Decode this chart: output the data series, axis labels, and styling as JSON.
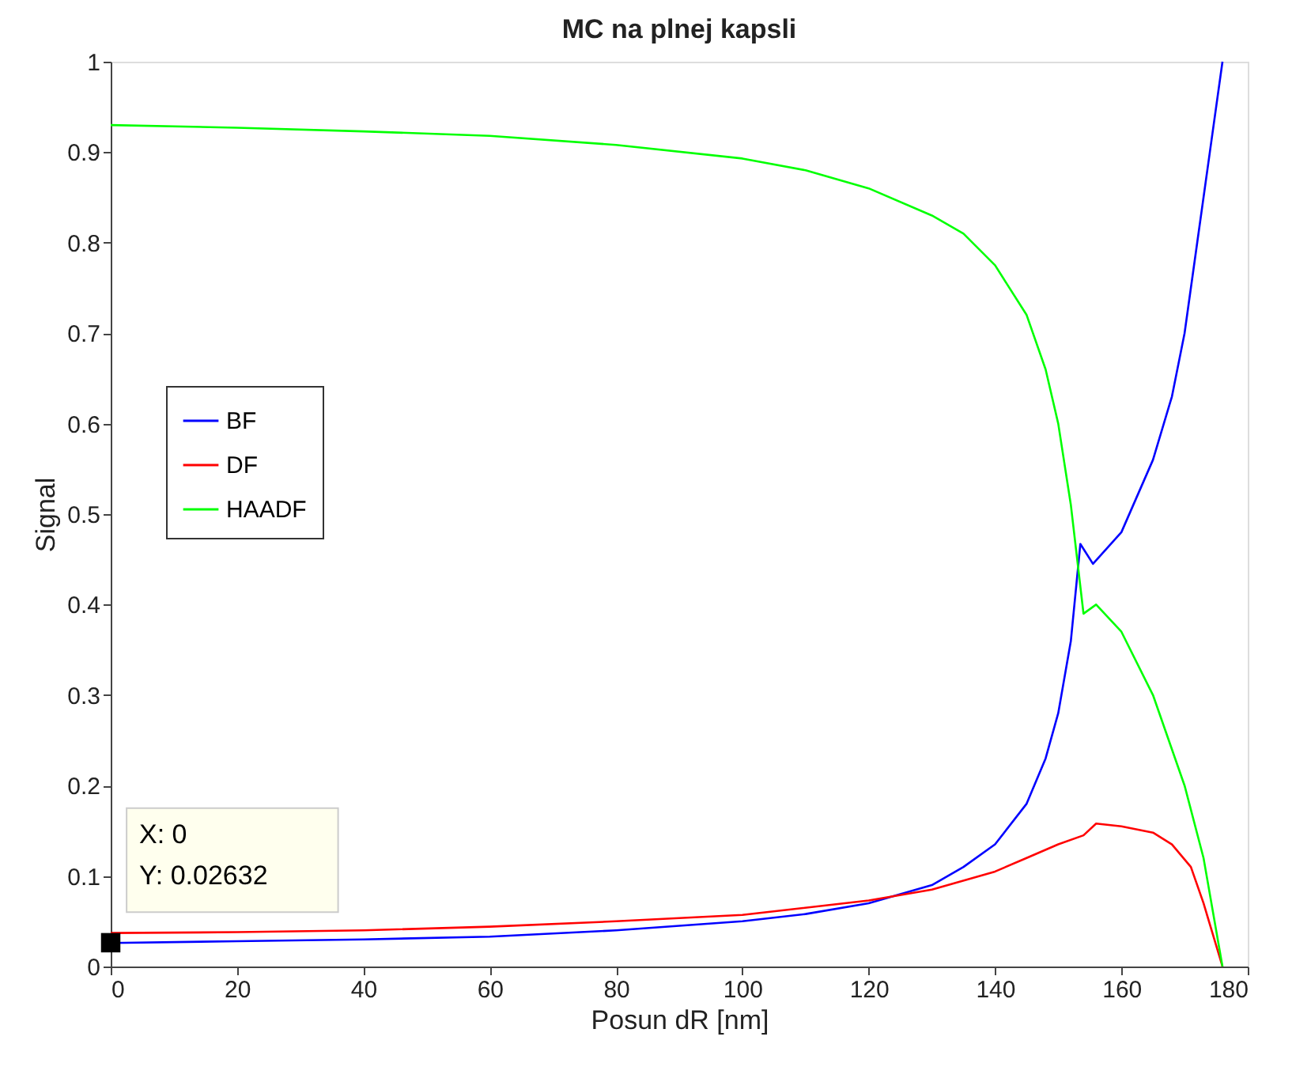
{
  "chart_data": {
    "type": "line",
    "title": "MC na plnej kapsli",
    "xlabel": "Posun dR [nm]",
    "ylabel": "Signal",
    "xlim": [
      0,
      180
    ],
    "xticks": [
      0,
      20,
      40,
      60,
      80,
      100,
      120,
      140,
      160,
      180
    ],
    "ylim": [
      0,
      1
    ],
    "yticks": [
      0,
      0.1,
      0.2,
      0.3,
      0.4,
      0.5,
      0.6,
      0.7,
      0.8,
      0.9,
      1
    ],
    "grid": false,
    "legend": "left",
    "marker": "none",
    "line_style": "solid",
    "series": [
      {
        "name": "BF",
        "color": "#0000ff",
        "x": [
          0,
          20,
          40,
          60,
          80,
          100,
          110,
          120,
          130,
          135,
          140,
          145,
          148,
          150,
          152,
          153.5,
          155.5,
          160,
          165,
          168,
          170,
          172,
          174,
          176
        ],
        "values": [
          0.026,
          0.028,
          0.03,
          0.033,
          0.04,
          0.05,
          0.058,
          0.07,
          0.09,
          0.11,
          0.135,
          0.18,
          0.23,
          0.28,
          0.36,
          0.467,
          0.445,
          0.48,
          0.56,
          0.63,
          0.7,
          0.8,
          0.9,
          1.0
        ]
      },
      {
        "name": "DF",
        "color": "#ff0000",
        "x": [
          0,
          20,
          40,
          60,
          80,
          100,
          120,
          130,
          140,
          145,
          150,
          154,
          156,
          160,
          165,
          168,
          171,
          173,
          176
        ],
        "values": [
          0.037,
          0.038,
          0.04,
          0.044,
          0.05,
          0.057,
          0.073,
          0.085,
          0.105,
          0.12,
          0.135,
          0.145,
          0.158,
          0.155,
          0.148,
          0.135,
          0.11,
          0.07,
          0
        ]
      },
      {
        "name": "HAADF",
        "color": "#00ff00",
        "x": [
          0,
          20,
          40,
          60,
          80,
          100,
          110,
          120,
          130,
          135,
          140,
          145,
          148,
          150,
          152,
          153,
          154,
          156,
          160,
          165,
          170,
          173,
          176
        ],
        "values": [
          0.93,
          0.927,
          0.923,
          0.918,
          0.908,
          0.893,
          0.88,
          0.86,
          0.83,
          0.81,
          0.775,
          0.72,
          0.66,
          0.6,
          0.51,
          0.45,
          0.39,
          0.4,
          0.37,
          0.3,
          0.2,
          0.12,
          0
        ]
      }
    ],
    "annotations": [
      {
        "text": "X: 0\nY: 0.02632",
        "x": 0,
        "y": 0.02632
      }
    ]
  }
}
